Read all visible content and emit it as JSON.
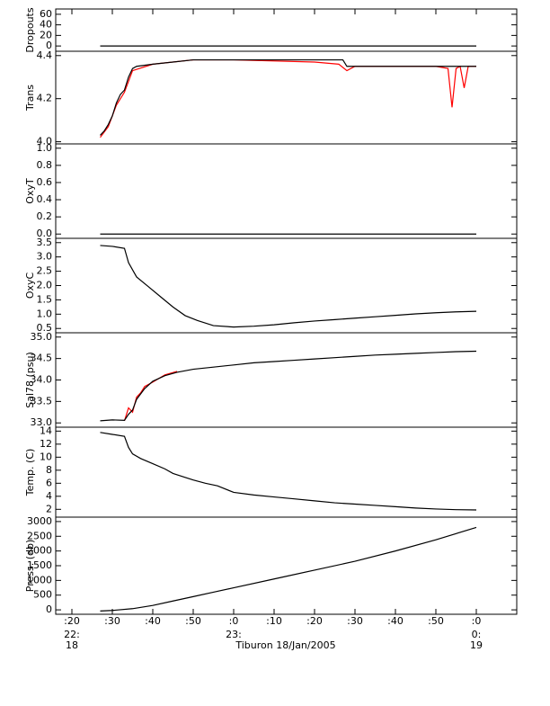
{
  "x_axis": {
    "xlim": [
      16,
      130
    ],
    "xticks": [
      {
        "value": 20,
        "label": ":20"
      },
      {
        "value": 30,
        "label": ":30"
      },
      {
        "value": 40,
        "label": ":40"
      },
      {
        "value": 50,
        "label": ":50"
      },
      {
        "value": 60,
        "label": ":0"
      },
      {
        "value": 70,
        "label": ":10"
      },
      {
        "value": 80,
        "label": ":20"
      },
      {
        "value": 90,
        "label": ":30"
      },
      {
        "value": 100,
        "label": ":40"
      },
      {
        "value": 110,
        "label": ":50"
      },
      {
        "value": 120,
        "label": ":0"
      }
    ],
    "hour_labels": [
      {
        "value": 20,
        "label": "22:"
      },
      {
        "value": 60,
        "label": "23:"
      },
      {
        "value": 120,
        "label": "0:"
      }
    ],
    "day_labels": [
      {
        "value": 20,
        "label": "18"
      },
      {
        "value": 120,
        "label": "19"
      }
    ],
    "xlabel": "Tiburon 18/Jan/2005"
  },
  "chart_data": [
    {
      "type": "line",
      "ylabel": "Dropouts",
      "ylim": [
        -10,
        70
      ],
      "yticks": [
        0,
        20,
        40,
        60
      ],
      "series": [
        {
          "color": "#000000",
          "x": [
            27,
            120
          ],
          "values": [
            0,
            0
          ]
        }
      ]
    },
    {
      "type": "line",
      "ylabel": "Trans",
      "ylim": [
        3.99,
        4.42
      ],
      "yticks": [
        {
          "value": 4.0,
          "label": "4.0"
        },
        4.2,
        4.4
      ],
      "series": [
        {
          "color": "#ff0000",
          "x": [
            27,
            29,
            31,
            33,
            35,
            40,
            50,
            60,
            80,
            86,
            88,
            90,
            100,
            110,
            113,
            114,
            115,
            116,
            117,
            118,
            120
          ],
          "values": [
            4.02,
            4.07,
            4.17,
            4.23,
            4.33,
            4.36,
            4.38,
            4.38,
            4.37,
            4.36,
            4.33,
            4.35,
            4.35,
            4.35,
            4.34,
            4.16,
            4.34,
            4.35,
            4.25,
            4.35,
            4.35
          ]
        },
        {
          "color": "#000000",
          "x": [
            27,
            28,
            29,
            30,
            31,
            32,
            33,
            34,
            35,
            36,
            40,
            45,
            50,
            60,
            70,
            80,
            87,
            88,
            90,
            100,
            110,
            120
          ],
          "values": [
            4.03,
            4.05,
            4.08,
            4.12,
            4.18,
            4.22,
            4.24,
            4.3,
            4.34,
            4.35,
            4.36,
            4.37,
            4.38,
            4.38,
            4.38,
            4.38,
            4.38,
            4.35,
            4.35,
            4.35,
            4.35,
            4.35
          ]
        }
      ]
    },
    {
      "type": "line",
      "ylabel": "OxyT",
      "ylim": [
        -0.05,
        1.05
      ],
      "yticks": [
        {
          "value": 0,
          "label": "0.0"
        },
        0.2,
        0.4,
        0.6,
        0.8,
        {
          "value": 1,
          "label": "1.0"
        }
      ],
      "series": [
        {
          "color": "#000000",
          "x": [
            27,
            120
          ],
          "values": [
            0,
            0
          ]
        }
      ]
    },
    {
      "type": "line",
      "ylabel": "OxyC",
      "ylim": [
        0.35,
        3.65
      ],
      "yticks": [
        0.5,
        {
          "value": 1,
          "label": "1.0"
        },
        1.5,
        {
          "value": 2,
          "label": "2.0"
        },
        2.5,
        {
          "value": 3,
          "label": "3.0"
        },
        3.5
      ],
      "series": [
        {
          "color": "#000000",
          "x": [
            27,
            30,
            33,
            34,
            36,
            39,
            42,
            45,
            48,
            51,
            55,
            60,
            65,
            70,
            75,
            80,
            85,
            90,
            95,
            100,
            105,
            110,
            115,
            120
          ],
          "values": [
            3.4,
            3.37,
            3.3,
            2.8,
            2.3,
            1.95,
            1.6,
            1.25,
            0.95,
            0.78,
            0.6,
            0.55,
            0.58,
            0.63,
            0.7,
            0.76,
            0.81,
            0.86,
            0.91,
            0.96,
            1.01,
            1.05,
            1.08,
            1.1
          ]
        }
      ]
    },
    {
      "type": "line",
      "ylabel": "Sal78 (psu)",
      "ylim": [
        32.9,
        35.1
      ],
      "yticks": [
        {
          "value": 33,
          "label": "33.0"
        },
        33.5,
        {
          "value": 34,
          "label": "34.0"
        },
        34.5,
        {
          "value": 35,
          "label": "35.0"
        }
      ],
      "series": [
        {
          "color": "#ff0000",
          "x": [
            33,
            34,
            35,
            36,
            37,
            38,
            40,
            43,
            46
          ],
          "values": [
            33.05,
            33.35,
            33.25,
            33.6,
            33.7,
            33.85,
            33.95,
            34.12,
            34.2
          ]
        },
        {
          "color": "#000000",
          "x": [
            27,
            30,
            33,
            34,
            35,
            36,
            38,
            40,
            43,
            46,
            50,
            55,
            60,
            65,
            70,
            75,
            80,
            85,
            90,
            95,
            100,
            105,
            110,
            115,
            120
          ],
          "values": [
            33.05,
            33.07,
            33.06,
            33.2,
            33.3,
            33.55,
            33.8,
            33.97,
            34.1,
            34.18,
            34.25,
            34.3,
            34.35,
            34.4,
            34.43,
            34.46,
            34.49,
            34.52,
            34.55,
            34.58,
            34.6,
            34.62,
            34.64,
            34.66,
            34.67
          ]
        }
      ]
    },
    {
      "type": "line",
      "ylabel": "Temp. (C)",
      "ylim": [
        0.8,
        14.6
      ],
      "yticks": [
        2,
        4,
        6,
        8,
        10,
        12,
        14
      ],
      "series": [
        {
          "color": "#000000",
          "x": [
            27,
            30,
            33,
            34,
            35,
            37,
            40,
            43,
            45,
            48,
            50,
            53,
            56,
            60,
            65,
            70,
            75,
            80,
            85,
            90,
            95,
            100,
            105,
            110,
            115,
            120
          ],
          "values": [
            13.8,
            13.5,
            13.2,
            11.5,
            10.5,
            9.8,
            9,
            8.2,
            7.5,
            6.9,
            6.5,
            6,
            5.6,
            4.6,
            4.2,
            3.9,
            3.6,
            3.3,
            3,
            2.8,
            2.6,
            2.4,
            2.2,
            2.05,
            1.95,
            1.9
          ]
        }
      ]
    },
    {
      "type": "line",
      "ylabel": "Press. (db)",
      "ylim": [
        -150,
        3150
      ],
      "yticks": [
        0,
        500,
        1000,
        1500,
        2000,
        2500,
        3000
      ],
      "series": [
        {
          "color": "#000000",
          "x": [
            27,
            30,
            35,
            40,
            45,
            50,
            55,
            60,
            70,
            80,
            90,
            100,
            110,
            120
          ],
          "values": [
            -40,
            -20,
            40,
            150,
            300,
            450,
            600,
            750,
            1050,
            1350,
            1650,
            2000,
            2380,
            2800
          ]
        }
      ]
    }
  ]
}
